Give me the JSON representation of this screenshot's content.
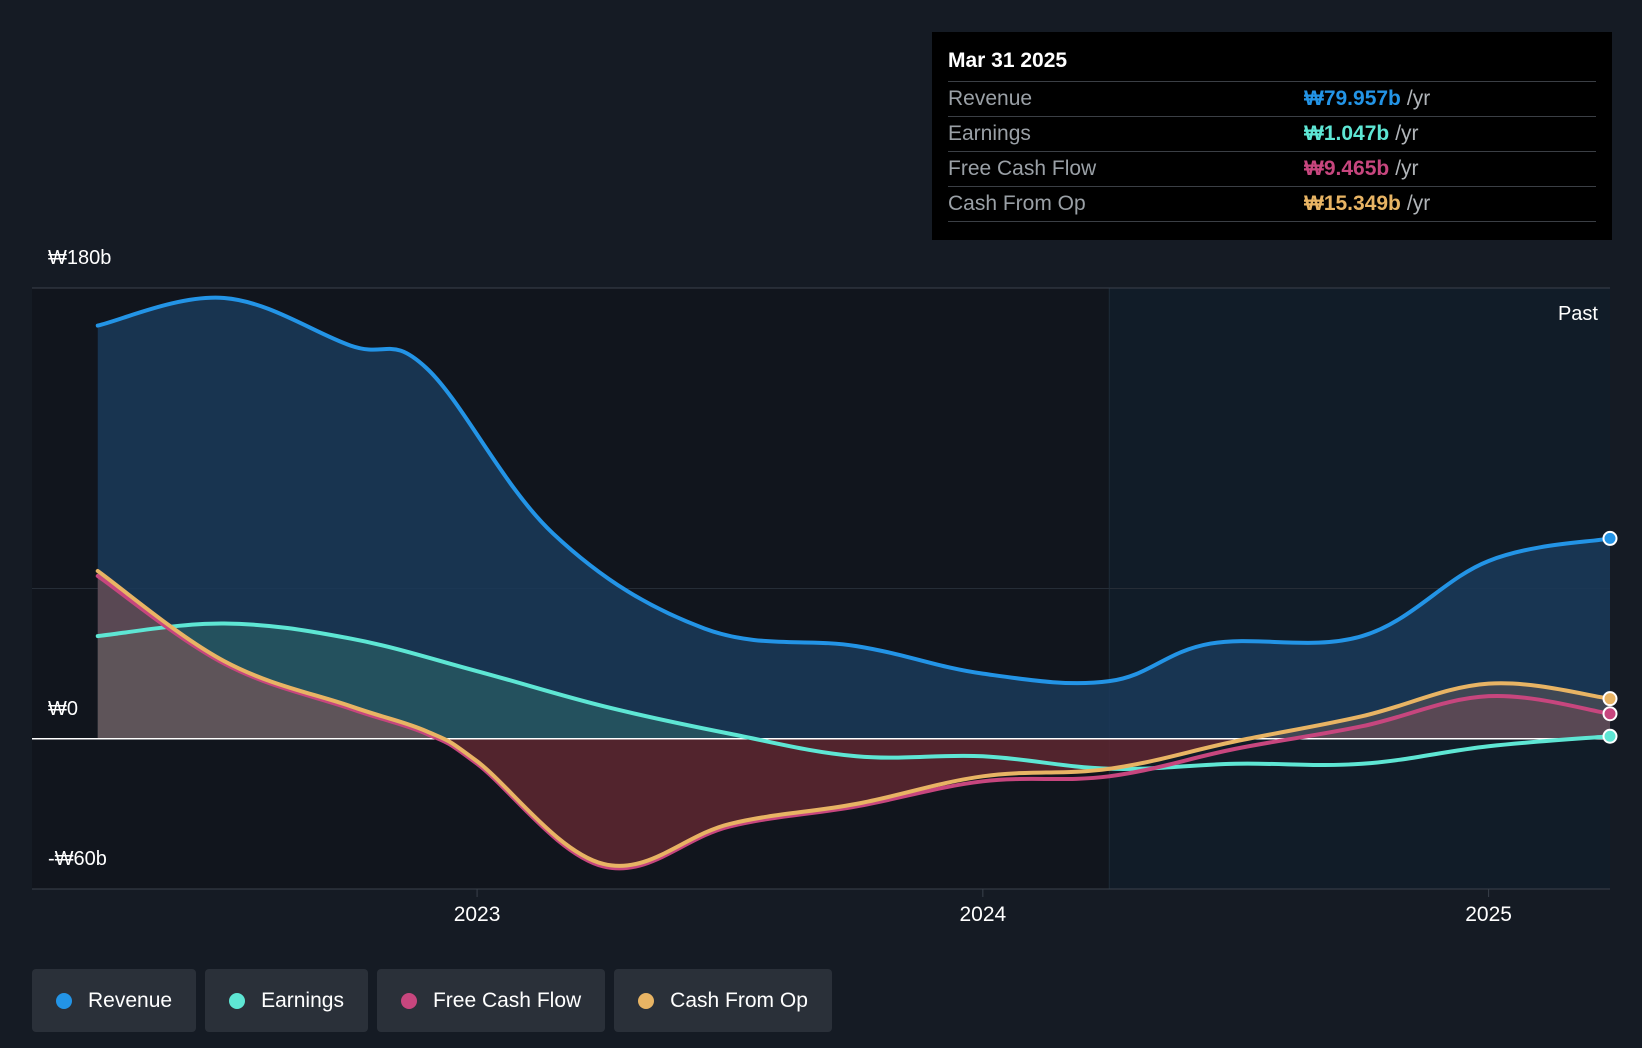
{
  "chart_data": {
    "type": "area",
    "y_axis": {
      "labels": [
        "₩180b",
        "₩0",
        "-₩60b"
      ],
      "ylim": [
        -60,
        180
      ]
    },
    "x_axis": {
      "ticks": [
        {
          "label": "2023",
          "x": 2023.0
        },
        {
          "label": "2024",
          "x": 2024.0
        },
        {
          "label": "2025",
          "x": 2025.0
        }
      ],
      "xlim": [
        2022.12,
        2025.24
      ]
    },
    "past_label": "Past",
    "past_start": 2024.25,
    "series": [
      {
        "name": "Revenue",
        "color": "#2394e6",
        "points": [
          [
            2022.25,
            165
          ],
          [
            2022.5,
            176
          ],
          [
            2022.75,
            157
          ],
          [
            2022.9,
            148
          ],
          [
            2023.15,
            82
          ],
          [
            2023.45,
            44
          ],
          [
            2023.75,
            37
          ],
          [
            2024.0,
            26
          ],
          [
            2024.25,
            23
          ],
          [
            2024.45,
            38
          ],
          [
            2024.75,
            41
          ],
          [
            2025.0,
            71
          ],
          [
            2025.24,
            80
          ]
        ]
      },
      {
        "name": "Earnings",
        "color": "#5ee6d4",
        "points": [
          [
            2022.25,
            41
          ],
          [
            2022.5,
            46
          ],
          [
            2022.75,
            40
          ],
          [
            2023.0,
            27
          ],
          [
            2023.25,
            13
          ],
          [
            2023.5,
            2
          ],
          [
            2023.75,
            -7
          ],
          [
            2024.0,
            -7
          ],
          [
            2024.25,
            -12
          ],
          [
            2024.5,
            -10
          ],
          [
            2024.75,
            -10
          ],
          [
            2025.0,
            -3
          ],
          [
            2025.24,
            1
          ]
        ]
      },
      {
        "name": "Free Cash Flow",
        "color": "#c7467e",
        "points": [
          [
            2022.25,
            65
          ],
          [
            2022.5,
            30
          ],
          [
            2022.75,
            12
          ],
          [
            2022.9,
            2
          ],
          [
            2023.0,
            -10
          ],
          [
            2023.25,
            -51
          ],
          [
            2023.5,
            -35
          ],
          [
            2023.75,
            -27
          ],
          [
            2024.0,
            -17
          ],
          [
            2024.25,
            -15
          ],
          [
            2024.5,
            -4
          ],
          [
            2024.75,
            5
          ],
          [
            2025.0,
            17
          ],
          [
            2025.24,
            10
          ]
        ]
      },
      {
        "name": "Cash From Op",
        "color": "#e8b464",
        "points": [
          [
            2022.25,
            67
          ],
          [
            2022.5,
            31
          ],
          [
            2022.75,
            13
          ],
          [
            2022.9,
            3
          ],
          [
            2023.0,
            -9
          ],
          [
            2023.25,
            -50
          ],
          [
            2023.5,
            -34
          ],
          [
            2023.75,
            -26
          ],
          [
            2024.0,
            -15
          ],
          [
            2024.25,
            -12
          ],
          [
            2024.5,
            -1
          ],
          [
            2024.75,
            9
          ],
          [
            2025.0,
            22
          ],
          [
            2025.24,
            16
          ]
        ]
      }
    ]
  },
  "tooltip": {
    "date": "Mar 31 2025",
    "rows": [
      {
        "name": "Revenue",
        "value": "₩79.957b",
        "unit": "/yr",
        "color": "#2394e6"
      },
      {
        "name": "Earnings",
        "value": "₩1.047b",
        "unit": "/yr",
        "color": "#5ee6d4"
      },
      {
        "name": "Free Cash Flow",
        "value": "₩9.465b",
        "unit": "/yr",
        "color": "#c7467e"
      },
      {
        "name": "Cash From Op",
        "value": "₩15.349b",
        "unit": "/yr",
        "color": "#e8b464"
      }
    ]
  },
  "legend": [
    {
      "label": "Revenue",
      "color": "#2394e6"
    },
    {
      "label": "Earnings",
      "color": "#5ee6d4"
    },
    {
      "label": "Free Cash Flow",
      "color": "#c7467e"
    },
    {
      "label": "Cash From Op",
      "color": "#e8b464"
    }
  ]
}
